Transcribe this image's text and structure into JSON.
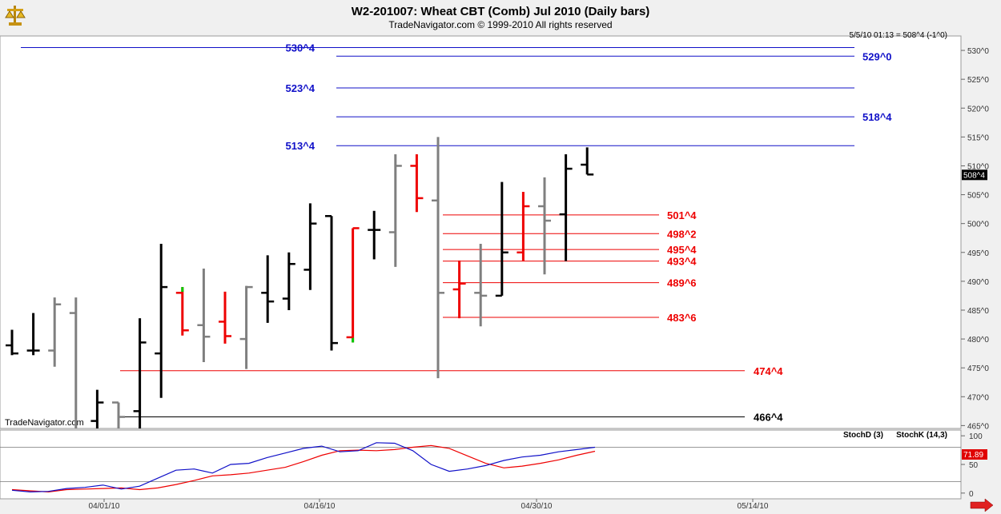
{
  "header": {
    "title": "W2-201007:  Wheat CBT (Comb) Jul 2010  (Daily bars)",
    "subtitle": "TradeNavigator.com © 1999-2010 All rights reserved",
    "quote": "5/5/10 01:13 = 508^4 (-1^0)",
    "watermark": "TradeNavigator.com",
    "current_price_tag": "508^4",
    "logo_icon": "scales-icon",
    "nav_icon": "right-arrow-icon"
  },
  "colors": {
    "blue_level": "#1010c8",
    "red_level": "#dd0000",
    "black_level": "#000000",
    "bar_black": "#000000",
    "bar_gray": "#7f7f7f",
    "bar_red": "#ee0000",
    "bar_green": "#00cc00",
    "stochd": "#dd0000",
    "stochk": "#1010c8"
  },
  "chart_data": [
    {
      "type": "ohlc",
      "y_tick_labels": [
        "465^0",
        "470^0",
        "475^0",
        "480^0",
        "485^0",
        "490^0",
        "495^0",
        "500^0",
        "505^0",
        "510^0",
        "515^0",
        "520^0",
        "525^0",
        "530^0"
      ],
      "y_ticks": [
        465,
        470,
        475,
        480,
        485,
        490,
        495,
        500,
        505,
        510,
        515,
        520,
        525,
        530
      ],
      "ylim": [
        464.5,
        532.5
      ],
      "x_tick_labels": [
        "04/01/10",
        "04/16/10",
        "04/30/10",
        "05/14/10"
      ],
      "bars": [
        {
          "x": 1,
          "o": 478.9,
          "h": 481.6,
          "l": 477.2,
          "c": 477.5,
          "color": "black"
        },
        {
          "x": 2,
          "o": 478.0,
          "h": 484.5,
          "l": 477.2,
          "c": 478.0,
          "color": "black"
        },
        {
          "x": 3,
          "o": 478.0,
          "h": 487.2,
          "l": 475.2,
          "c": 486.0,
          "color": "gray"
        },
        {
          "x": 4,
          "o": 484.5,
          "h": 487.2,
          "l": 458.0,
          "c": 459.0,
          "color": "gray"
        },
        {
          "x": 5,
          "o": 465.8,
          "h": 471.2,
          "l": 458.0,
          "c": 469.0,
          "color": "black"
        },
        {
          "x": 6,
          "o": 469.0,
          "h": 469.0,
          "l": 458.0,
          "c": 466.5,
          "color": "gray"
        },
        {
          "x": 7,
          "o": 467.5,
          "h": 483.6,
          "l": 460.0,
          "c": 479.4,
          "color": "black"
        },
        {
          "x": 8,
          "o": 477.5,
          "h": 496.5,
          "l": 469.8,
          "c": 489.0,
          "color": "black"
        },
        {
          "x": 9,
          "o": 488.0,
          "h": 489.0,
          "l": 480.6,
          "c": 481.5,
          "color": "red",
          "hi_color": "green"
        },
        {
          "x": 10,
          "o": 482.4,
          "h": 492.2,
          "l": 476.0,
          "c": 480.4,
          "color": "gray"
        },
        {
          "x": 11,
          "o": 483.0,
          "h": 488.2,
          "l": 479.2,
          "c": 480.5,
          "color": "red"
        },
        {
          "x": 12,
          "o": 480.0,
          "h": 489.2,
          "l": 474.8,
          "c": 489.0,
          "color": "gray"
        },
        {
          "x": 13,
          "o": 488.0,
          "h": 494.5,
          "l": 482.8,
          "c": 486.5,
          "color": "black"
        },
        {
          "x": 14,
          "o": 487.0,
          "h": 495.0,
          "l": 485.0,
          "c": 493.0,
          "color": "black"
        },
        {
          "x": 15,
          "o": 492.0,
          "h": 503.5,
          "l": 488.5,
          "c": 500.0,
          "color": "black"
        },
        {
          "x": 16,
          "o": 501.3,
          "h": 501.3,
          "l": 478.0,
          "c": 479.3,
          "color": "black"
        },
        {
          "x": 17,
          "o": 480.3,
          "h": 499.2,
          "l": 479.4,
          "c": 499.2,
          "color": "red",
          "lo_color": "green"
        },
        {
          "x": 18,
          "o": 498.9,
          "h": 502.2,
          "l": 493.8,
          "c": 498.9,
          "color": "black"
        },
        {
          "x": 19,
          "o": 498.5,
          "h": 512.0,
          "l": 492.5,
          "c": 510.0,
          "color": "gray"
        },
        {
          "x": 20,
          "o": 510.0,
          "h": 512.0,
          "l": 502.0,
          "c": 504.4,
          "color": "red"
        },
        {
          "x": 21,
          "o": 504.0,
          "h": 515.0,
          "l": 473.2,
          "c": 488.0,
          "color": "gray"
        },
        {
          "x": 22,
          "o": 488.6,
          "h": 493.6,
          "l": 483.6,
          "c": 489.6,
          "color": "red"
        },
        {
          "x": 23,
          "o": 488.0,
          "h": 496.5,
          "l": 482.2,
          "c": 487.5,
          "color": "gray"
        },
        {
          "x": 24,
          "o": 487.5,
          "h": 507.2,
          "l": 487.5,
          "c": 495.0,
          "color": "black"
        },
        {
          "x": 25,
          "o": 495.0,
          "h": 505.5,
          "l": 493.5,
          "c": 503.0,
          "color": "red"
        },
        {
          "x": 26,
          "o": 503.0,
          "h": 508.0,
          "l": 491.2,
          "c": 500.5,
          "color": "gray"
        },
        {
          "x": 27,
          "o": 501.6,
          "h": 512.0,
          "l": 493.5,
          "c": 509.5,
          "color": "black"
        },
        {
          "x": 28,
          "o": 510.2,
          "h": 513.2,
          "l": 508.5,
          "c": 508.5,
          "color": "black"
        }
      ],
      "levels": [
        {
          "value": 530.5,
          "label": "530^4",
          "color": "blue",
          "from": 26,
          "to": 1067,
          "label_x": 393,
          "label_anchor": "end"
        },
        {
          "value": 529.0,
          "label": "529^0",
          "color": "blue",
          "from": 420,
          "to": 1067,
          "label_x": 1077,
          "label_anchor": "start"
        },
        {
          "value": 523.5,
          "label": "523^4",
          "color": "blue",
          "from": 420,
          "to": 1067,
          "label_x": 393,
          "label_anchor": "end"
        },
        {
          "value": 518.5,
          "label": "518^4",
          "color": "blue",
          "from": 420,
          "to": 1067,
          "label_x": 1077,
          "label_anchor": "start"
        },
        {
          "value": 513.5,
          "label": "513^4",
          "color": "blue",
          "from": 420,
          "to": 1067,
          "label_x": 393,
          "label_anchor": "end"
        },
        {
          "value": 501.5,
          "label": "501^4",
          "color": "red",
          "from": 553,
          "to": 823,
          "label_x": 833,
          "label_anchor": "start"
        },
        {
          "value": 498.25,
          "label": "498^2",
          "color": "red",
          "from": 553,
          "to": 823,
          "label_x": 833,
          "label_anchor": "start"
        },
        {
          "value": 495.5,
          "label": "495^4",
          "color": "red",
          "from": 553,
          "to": 823,
          "label_x": 833,
          "label_anchor": "start"
        },
        {
          "value": 493.5,
          "label": "493^4",
          "color": "red",
          "from": 553,
          "to": 823,
          "label_x": 833,
          "label_anchor": "start"
        },
        {
          "value": 489.75,
          "label": "489^6",
          "color": "red",
          "from": 553,
          "to": 823,
          "label_x": 833,
          "label_anchor": "start"
        },
        {
          "value": 483.75,
          "label": "483^6",
          "color": "red",
          "from": 553,
          "to": 823,
          "label_x": 833,
          "label_anchor": "start"
        },
        {
          "value": 474.5,
          "label": "474^4",
          "color": "red",
          "from": 150,
          "to": 930,
          "label_x": 941,
          "label_anchor": "start"
        },
        {
          "value": 466.5,
          "label": "466^4",
          "color": "black",
          "from": 150,
          "to": 930,
          "label_x": 941,
          "label_anchor": "start"
        }
      ]
    },
    {
      "type": "line",
      "ylim": [
        -10,
        110
      ],
      "y_ticks": [
        0,
        50,
        100
      ],
      "y_tick_labels": [
        "0",
        "50",
        "100"
      ],
      "legend": [
        "StochD (3)",
        "StochK (14,3)"
      ],
      "reference_lines": [
        80,
        20
      ],
      "last_value_label": "71.89",
      "series": [
        {
          "name": "StochD (3)",
          "color": "red",
          "values": [
            6,
            4,
            2,
            6,
            7,
            8,
            9,
            6,
            9,
            15,
            22,
            30,
            32,
            35,
            40,
            45,
            55,
            66,
            74,
            75,
            74,
            76,
            80,
            83,
            78,
            65,
            52,
            44,
            47,
            52,
            58,
            66,
            73
          ]
        },
        {
          "name": "StochK (14,3)",
          "color": "blue",
          "values": [
            5,
            2,
            3,
            8,
            10,
            14,
            7,
            12,
            26,
            40,
            42,
            35,
            50,
            52,
            62,
            70,
            78,
            82,
            72,
            74,
            88,
            87,
            74,
            50,
            38,
            42,
            48,
            57,
            63,
            66,
            72,
            76,
            80
          ]
        }
      ]
    }
  ]
}
